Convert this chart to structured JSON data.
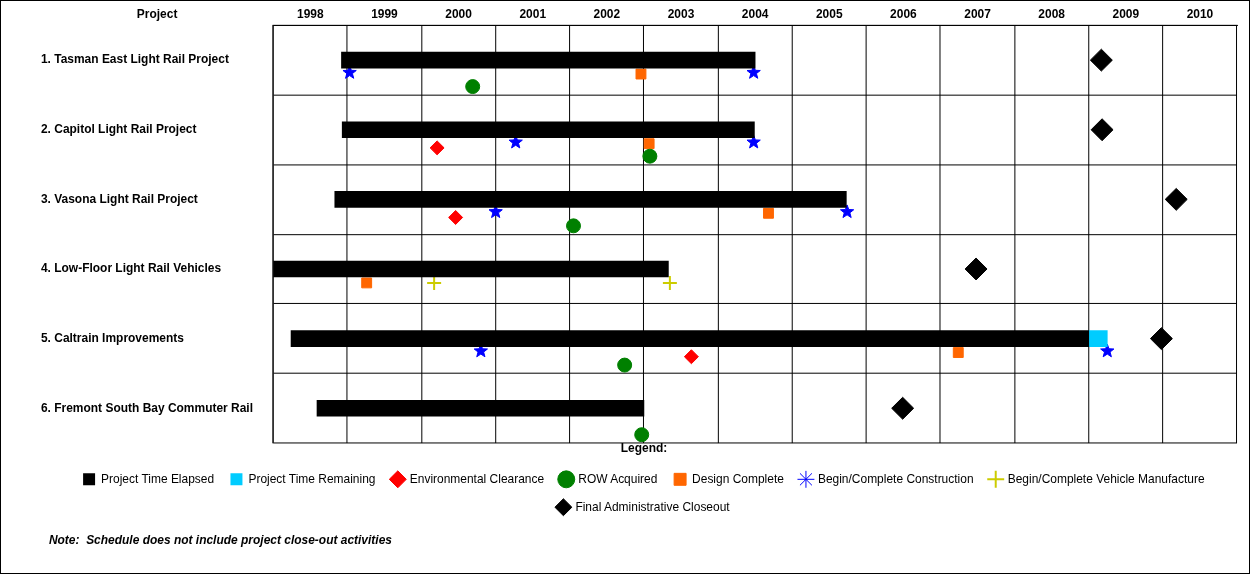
{
  "chart_data": {
    "type": "bar",
    "orientation": "horizontal",
    "ylabel": "Project",
    "legend_title": "Legend:",
    "categories": [
      "1. Tasman East Light Rail Project",
      "2. Capitol Light Rail Project",
      "3. Vasona Light Rail Project",
      "4. Low-Floor Light Rail Vehicles",
      "5. Caltrain Improvements",
      "6. Fremont South Bay Commuter Rail"
    ],
    "series": [
      {
        "name": "Project Time Elapsed",
        "color": "#000000",
        "base": [
          1998.92,
          1998.93,
          1998.83,
          1998.0,
          1998.24,
          1998.59
        ],
        "values": [
          5.58,
          5.56,
          6.9,
          5.33,
          10.76,
          4.41
        ]
      },
      {
        "name": "Project Time Remaining",
        "color": "#00ccff",
        "base": [
          null,
          null,
          null,
          null,
          2009.0,
          null
        ],
        "values": [
          null,
          null,
          null,
          null,
          0.25,
          null
        ]
      },
      {
        "name": "Environmental Clearance",
        "type": "scatter",
        "marker": "diamond",
        "color": "#ff0000",
        "x": [
          "2. Capitol Light Rail Project",
          "3. Vasona Light Rail Project",
          "5. Caltrain Improvements"
        ],
        "values": [
          2000.21,
          2000.46,
          2003.64
        ]
      },
      {
        "name": "ROW Acquired",
        "type": "scatter",
        "marker": "circle",
        "color": "#008000",
        "x": [
          "1. Tasman East Light Rail Project",
          "2. Capitol Light Rail Project",
          "3. Vasona Light Rail Project",
          "5. Caltrain Improvements",
          "6. Fremont South Bay Commuter Rail"
        ],
        "values": [
          2000.69,
          2003.08,
          2002.05,
          2002.74,
          2002.97
        ]
      },
      {
        "name": "Design Complete",
        "type": "scatter",
        "marker": "square",
        "color": "#ff6600",
        "x": [
          "1. Tasman East Light Rail Project",
          "2. Capitol Light Rail Project",
          "3. Vasona Light Rail Project",
          "4. Low-Floor Light Rail Vehicles",
          "5. Caltrain Improvements"
        ],
        "values": [
          2002.96,
          2003.07,
          2004.68,
          1999.26,
          2007.24
        ]
      },
      {
        "name": "Begin/Complete Construction",
        "type": "scatter",
        "marker": "star",
        "color": "#0000ff",
        "x": [
          "1. Tasman East Light Rail Project",
          "1. Tasman East Light Rail Project",
          "2. Capitol Light Rail Project",
          "2. Capitol Light Rail Project",
          "3. Vasona Light Rail Project",
          "3. Vasona Light Rail Project",
          "5. Caltrain Improvements",
          "5. Caltrain Improvements"
        ],
        "values": [
          1999.03,
          2004.48,
          2001.27,
          2004.48,
          2001.0,
          2005.74,
          2000.8,
          2009.25
        ]
      },
      {
        "name": "Begin/Complete Vehicle Manufacture",
        "type": "scatter",
        "marker": "cross",
        "color": "#cccc00",
        "x": [
          "4. Low-Floor Light Rail Vehicles",
          "4. Low-Floor Light Rail Vehicles"
        ],
        "values": [
          2000.17,
          2003.35
        ]
      },
      {
        "name": "Final Administrative Closeout",
        "type": "scatter",
        "marker": "diamond",
        "color": "#000000",
        "x": [
          "1. Tasman East Light Rail Project",
          "2. Capitol Light Rail Project",
          "3. Vasona Light Rail Project",
          "4. Low-Floor Light Rail Vehicles",
          "5. Caltrain Improvements",
          "6. Fremont South Bay Commuter Rail"
        ],
        "values": [
          2009.17,
          2009.18,
          2010.18,
          2007.48,
          2009.98,
          2006.49
        ]
      }
    ],
    "xlim": [
      1998,
      2011
    ],
    "xticks": [
      {
        "value": 1998.5,
        "label": "1998"
      },
      {
        "value": 1999.5,
        "label": "1999"
      },
      {
        "value": 2000.5,
        "label": "2000"
      },
      {
        "value": 2001.5,
        "label": "2001"
      },
      {
        "value": 2002.5,
        "label": "2002"
      },
      {
        "value": 2003.5,
        "label": "2003"
      },
      {
        "value": 2004.5,
        "label": "2004"
      },
      {
        "value": 2005.5,
        "label": "2005"
      },
      {
        "value": 2006.5,
        "label": "2006"
      },
      {
        "value": 2007.5,
        "label": "2007"
      },
      {
        "value": 2008.5,
        "label": "2008"
      },
      {
        "value": 2009.5,
        "label": "2009"
      },
      {
        "value": 2010.5,
        "label": "2010"
      }
    ],
    "grid": true,
    "legend": "bottom",
    "annotations": [
      "Note:  Schedule does not include project close-out activities"
    ]
  }
}
